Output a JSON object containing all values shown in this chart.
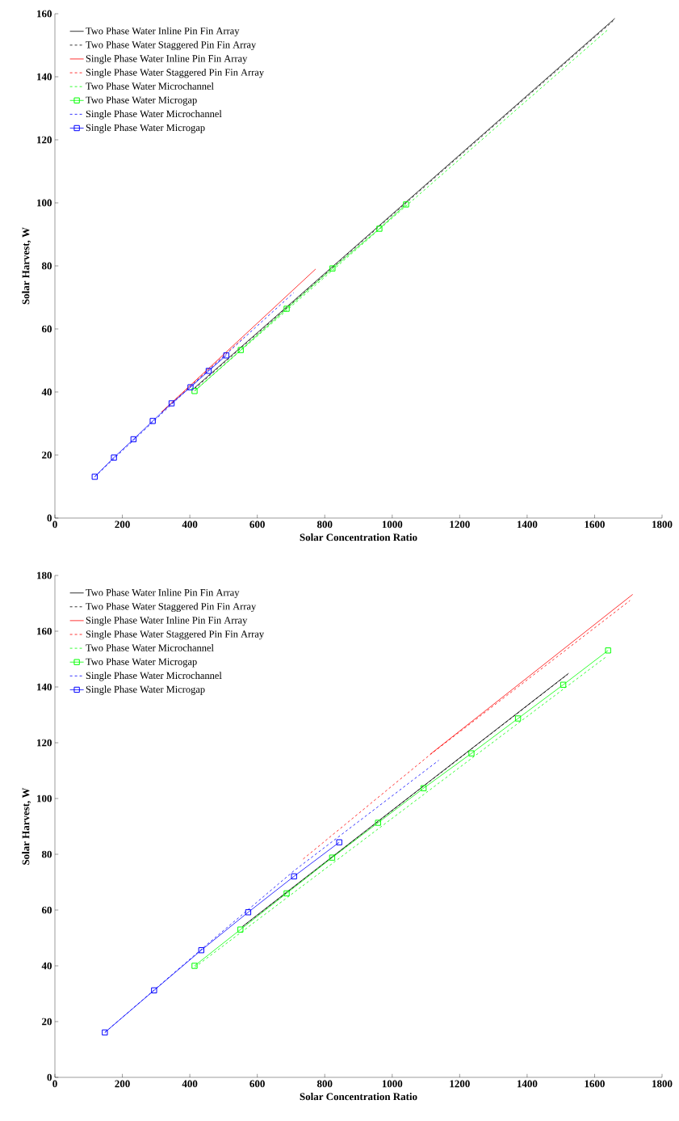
{
  "chart_data": [
    {
      "type": "line",
      "xlabel": "Solar Concentration Ratio",
      "ylabel": "Solar Harvest, W",
      "xlim": [
        0,
        1800
      ],
      "ylim": [
        0,
        160
      ],
      "xticks": [
        0,
        200,
        400,
        600,
        800,
        1000,
        1200,
        1400,
        1600,
        1800
      ],
      "yticks": [
        0,
        20,
        40,
        60,
        80,
        100,
        120,
        140,
        160
      ],
      "legend": "top left",
      "grid": false,
      "series": [
        {
          "name": "Two Phase Water Inline Pin Fin Array",
          "color": "#000000",
          "line_style": "solid",
          "marker": "none",
          "x": [
            414,
            1660
          ],
          "values": [
            41.3,
            158.5
          ]
        },
        {
          "name": "Two Phase Water Staggered Pin Fin Array",
          "color": "#000000",
          "line_style": "dashed",
          "marker": "none",
          "x": [
            414,
            1655
          ],
          "values": [
            41,
            157.7
          ]
        },
        {
          "name": "Single Phase Water Inline Pin Fin Array",
          "color": "#ff0000",
          "line_style": "solid",
          "marker": "none",
          "x": [
            316,
            773
          ],
          "values": [
            33.6,
            79
          ]
        },
        {
          "name": "Single Phase Water Staggered Pin Fin Array",
          "color": "#ff0000",
          "line_style": "dashed",
          "marker": "none",
          "x": [
            316,
            562
          ],
          "values": [
            33.6,
            57.4
          ]
        },
        {
          "name": "Two Phase Water Microchannel",
          "color": "#00ff00",
          "line_style": "dashed",
          "marker": "none",
          "x": [
            414,
            1041,
            1640
          ],
          "values": [
            40.3,
            99,
            155
          ]
        },
        {
          "name": "Two Phase Water Microgap",
          "color": "#00ff00",
          "line_style": "solid",
          "marker": "square",
          "x": [
            414,
            551,
            687,
            823,
            962,
            1041
          ],
          "values": [
            40.3,
            53.3,
            66.4,
            79.2,
            91.8,
            99.5
          ]
        },
        {
          "name": "Single Phase Water Microchannel",
          "color": "#0000ff",
          "line_style": "dashed",
          "marker": "none",
          "x": [
            118,
            402,
            708
          ],
          "values": [
            13.1,
            41.7,
            71.5
          ]
        },
        {
          "name": "Single Phase Water Microgap",
          "color": "#0000ff",
          "line_style": "solid",
          "marker": "square",
          "x": [
            118,
            175,
            233,
            290,
            346,
            402,
            456,
            508
          ],
          "values": [
            13.1,
            19.2,
            25,
            30.8,
            36.4,
            41.5,
            46.7,
            51.6
          ]
        }
      ]
    },
    {
      "type": "line",
      "xlabel": "Solar Concentration Ratio",
      "ylabel": "Solar Harvest, W",
      "xlim": [
        0,
        1800
      ],
      "ylim": [
        0,
        180
      ],
      "xticks": [
        0,
        200,
        400,
        600,
        800,
        1000,
        1200,
        1400,
        1600,
        1800
      ],
      "yticks": [
        0,
        20,
        40,
        60,
        80,
        100,
        120,
        140,
        160,
        180
      ],
      "legend": "top left",
      "grid": false,
      "series": [
        {
          "name": "Two Phase Water Inline Pin Fin Array",
          "color": "#000000",
          "line_style": "solid",
          "marker": "none",
          "x": [
            556,
            1523
          ],
          "values": [
            54.1,
            144.9
          ]
        },
        {
          "name": "Two Phase Water Staggered Pin Fin Array",
          "color": "#000000",
          "line_style": "dashed",
          "marker": "none",
          "x": [
            556,
            1520
          ],
          "values": [
            54,
            144.5
          ]
        },
        {
          "name": "Single Phase Water Inline Pin Fin Array",
          "color": "#ff0000",
          "line_style": "solid",
          "marker": "none",
          "x": [
            1113,
            1713
          ],
          "values": [
            115.9,
            173.2
          ]
        },
        {
          "name": "Single Phase Water Staggered Pin Fin Array",
          "color": "#ff0000",
          "line_style": "dashed",
          "marker": "none",
          "x": [
            736,
            1110,
            1705
          ],
          "values": [
            78.3,
            115.5,
            171
          ]
        },
        {
          "name": "Two Phase Water Microchannel",
          "color": "#00ff00",
          "line_style": "dashed",
          "marker": "none",
          "x": [
            415,
            1633
          ],
          "values": [
            39.5,
            150.7
          ]
        },
        {
          "name": "Two Phase Water Microgap",
          "color": "#00ff00",
          "line_style": "solid",
          "marker": "square",
          "x": [
            414,
            550,
            687,
            822,
            958,
            1093,
            1235,
            1373,
            1507,
            1640
          ],
          "values": [
            40,
            53,
            66,
            78.8,
            91.3,
            103.7,
            116.2,
            128.7,
            140.8,
            153.1
          ]
        },
        {
          "name": "Single Phase Water Microchannel",
          "color": "#0000ff",
          "line_style": "dashed",
          "marker": "none",
          "x": [
            148,
            433,
            708,
            1138
          ],
          "values": [
            16.1,
            45.8,
            74,
            113.7
          ]
        },
        {
          "name": "Single Phase Water Microgap",
          "color": "#0000ff",
          "line_style": "solid",
          "marker": "square",
          "x": [
            148,
            294,
            434,
            573,
            709,
            843
          ],
          "values": [
            16.1,
            31.2,
            45.6,
            59.2,
            72.1,
            84.3
          ]
        }
      ]
    }
  ]
}
